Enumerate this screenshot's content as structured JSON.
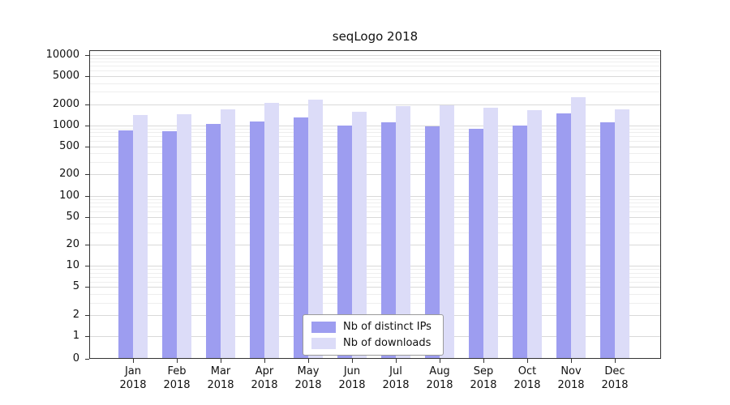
{
  "chart_data": {
    "type": "bar",
    "title": "seqLogo 2018",
    "year_label": "2018",
    "categories": [
      "Jan",
      "Feb",
      "Mar",
      "Apr",
      "May",
      "Jun",
      "Jul",
      "Aug",
      "Sep",
      "Oct",
      "Nov",
      "Dec"
    ],
    "series": [
      {
        "name": "Nb of distinct IPs",
        "color": "#9d9df0",
        "values": [
          850,
          830,
          1060,
          1150,
          1300,
          1000,
          1100,
          960,
          900,
          1000,
          1500,
          1120
        ]
      },
      {
        "name": "Nb of downloads",
        "color": "#dcdcf8",
        "values": [
          1400,
          1450,
          1700,
          2100,
          2300,
          1550,
          1900,
          1950,
          1800,
          1650,
          2500,
          1700
        ]
      }
    ],
    "yscale": "symlog",
    "yticks": [
      0,
      1,
      2,
      5,
      10,
      20,
      50,
      100,
      200,
      500,
      1000,
      2000,
      5000,
      10000
    ],
    "ylim": [
      0,
      10000
    ],
    "grid": true,
    "legend_position": "lower center inside"
  }
}
